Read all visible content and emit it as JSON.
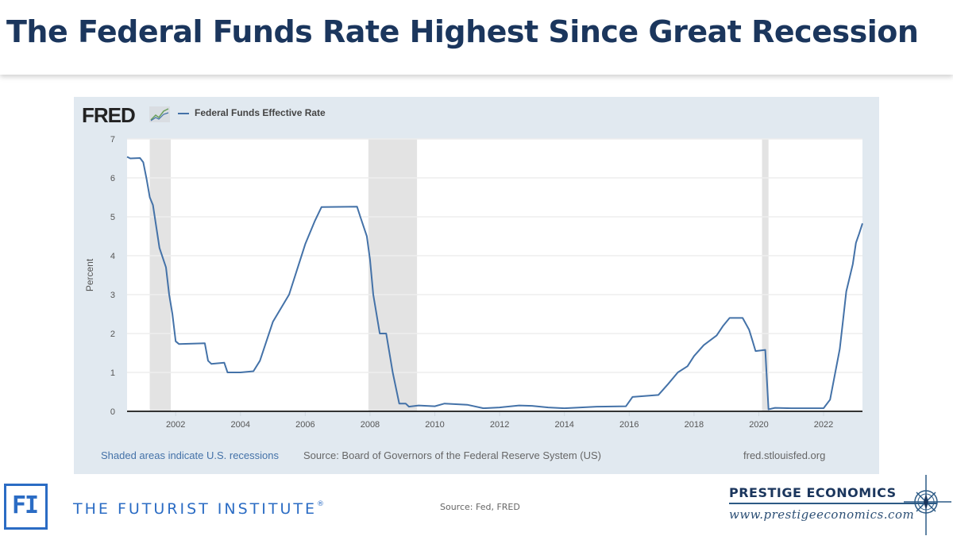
{
  "slide": {
    "title": "The Federal Funds Rate Highest Since Great Recession",
    "source": "Source: Fed, FRED"
  },
  "fred": {
    "logo": "FRED",
    "legend": "Federal Funds Effective Rate",
    "note_recessions": "Shaded areas indicate U.S. recessions",
    "note_source": "Source: Board of Governors of the Federal Reserve System (US)",
    "url": "fred.stlouisfed.org"
  },
  "branding": {
    "fi_initials": "FI",
    "fi_name": "THE FUTURIST INSTITUTE",
    "fi_reg": "®",
    "pe_name": "PRESTIGE ECONOMICS",
    "pe_url": "www.prestigeeconomics.com"
  },
  "colors": {
    "title": "#1b365d",
    "line": "#4472a8",
    "frame": "#e1e9f0",
    "recession": "#e3e3e3"
  },
  "chart_data": {
    "type": "line",
    "title": "Federal Funds Effective Rate",
    "xlabel": "",
    "ylabel": "Percent",
    "xlim": [
      2000.5,
      2023.2
    ],
    "ylim": [
      0,
      7
    ],
    "yticks": [
      "0",
      "1",
      "2",
      "3",
      "4",
      "5",
      "6",
      "7"
    ],
    "xticks": [
      "2002",
      "2004",
      "2006",
      "2008",
      "2010",
      "2012",
      "2014",
      "2016",
      "2018",
      "2020",
      "2022"
    ],
    "grid": true,
    "legend": "top-left",
    "recessions": [
      [
        2001.2,
        2001.85
      ],
      [
        2007.95,
        2009.45
      ],
      [
        2020.1,
        2020.3
      ]
    ],
    "series": [
      {
        "name": "Federal Funds Effective Rate",
        "x": [
          2000.5,
          2000.6,
          2000.9,
          2001.0,
          2001.1,
          2001.2,
          2001.3,
          2001.5,
          2001.7,
          2001.8,
          2001.9,
          2002.0,
          2002.1,
          2002.9,
          2003.0,
          2003.1,
          2003.5,
          2003.6,
          2004.0,
          2004.4,
          2004.6,
          2005.0,
          2005.5,
          2006.0,
          2006.3,
          2006.5,
          2007.6,
          2007.7,
          2007.9,
          2008.0,
          2008.1,
          2008.3,
          2008.5,
          2008.7,
          2008.9,
          2009.1,
          2009.2,
          2009.5,
          2010.0,
          2010.3,
          2011.0,
          2011.5,
          2012.0,
          2012.6,
          2013.0,
          2013.5,
          2014.0,
          2014.5,
          2015.0,
          2015.9,
          2016.1,
          2016.9,
          2017.2,
          2017.5,
          2017.8,
          2018.0,
          2018.3,
          2018.7,
          2018.9,
          2019.1,
          2019.5,
          2019.7,
          2019.8,
          2019.9,
          2020.2,
          2020.3,
          2020.5,
          2021.0,
          2021.5,
          2022.0,
          2022.2,
          2022.5,
          2022.6,
          2022.7,
          2022.9,
          2023.0,
          2023.1,
          2023.2
        ],
        "values": [
          6.54,
          6.5,
          6.51,
          6.4,
          5.98,
          5.5,
          5.3,
          4.2,
          3.7,
          3.0,
          2.5,
          1.8,
          1.73,
          1.75,
          1.3,
          1.22,
          1.25,
          1.0,
          1.0,
          1.03,
          1.3,
          2.3,
          3.0,
          4.3,
          4.9,
          5.25,
          5.26,
          5.0,
          4.5,
          3.9,
          3.0,
          2.0,
          2.0,
          1.0,
          0.2,
          0.2,
          0.12,
          0.15,
          0.13,
          0.2,
          0.17,
          0.08,
          0.1,
          0.15,
          0.14,
          0.1,
          0.08,
          0.1,
          0.12,
          0.13,
          0.37,
          0.42,
          0.7,
          1.0,
          1.16,
          1.42,
          1.7,
          1.95,
          2.2,
          2.4,
          2.4,
          2.1,
          1.83,
          1.55,
          1.58,
          0.05,
          0.09,
          0.08,
          0.08,
          0.08,
          0.3,
          1.6,
          2.33,
          3.08,
          3.78,
          4.33,
          4.57,
          4.83
        ]
      }
    ]
  }
}
